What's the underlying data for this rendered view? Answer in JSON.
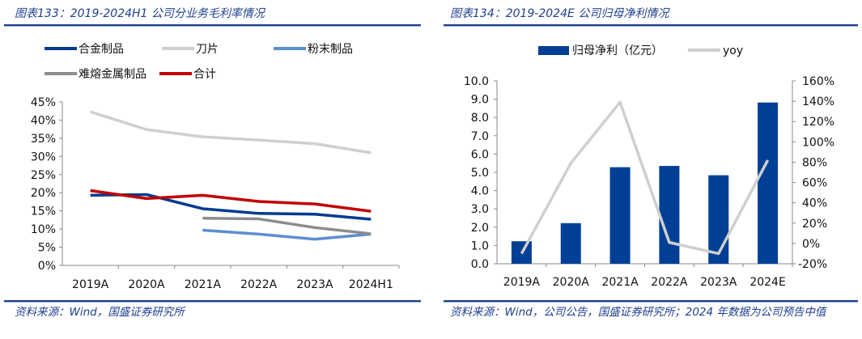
{
  "left": {
    "title": "图表133：2019-2024H1 公司分业务毛利率情况",
    "source": "资料来源：Wind，国盛证券研究所"
  },
  "right": {
    "title": "图表134：2019-2024E 公司归母净利情况",
    "source": "资料来源：Wind，公司公告，国盛证券研究所；2024 年数据为公司预告中值"
  },
  "chart_data": [
    {
      "type": "line",
      "title": "",
      "categories": [
        "2019A",
        "2020A",
        "2021A",
        "2022A",
        "2023A",
        "2024H1"
      ],
      "ylim": [
        0,
        45
      ],
      "yticks": [
        "0%",
        "5%",
        "10%",
        "15%",
        "20%",
        "25%",
        "30%",
        "35%",
        "40%",
        "45%"
      ],
      "yunit": "%",
      "grid": false,
      "legend_placement": "top",
      "series": [
        {
          "name": "合金制品",
          "color": "#003b8f",
          "values": [
            19.3,
            19.5,
            15.6,
            14.3,
            14.1,
            12.7
          ]
        },
        {
          "name": "刀片",
          "color": "#cfcfcf",
          "values": [
            42.3,
            37.4,
            35.4,
            34.5,
            33.5,
            31.0
          ]
        },
        {
          "name": "粉末制品",
          "color": "#5b8fd0",
          "values": [
            null,
            null,
            9.7,
            8.6,
            7.2,
            8.6
          ]
        },
        {
          "name": "难熔金属制品",
          "color": "#8c8c8c",
          "values": [
            null,
            null,
            13.0,
            12.8,
            10.4,
            8.7
          ]
        },
        {
          "name": "合计",
          "color": "#c00000",
          "values": [
            20.6,
            18.4,
            19.3,
            17.6,
            16.9,
            14.9
          ]
        }
      ]
    },
    {
      "type": "bar+line",
      "title": "",
      "categories": [
        "2019A",
        "2020A",
        "2021A",
        "2022A",
        "2023A",
        "2024E"
      ],
      "ylim": [
        0,
        10
      ],
      "yticks": [
        "0.0",
        "1.0",
        "2.0",
        "3.0",
        "4.0",
        "5.0",
        "6.0",
        "7.0",
        "8.0",
        "9.0",
        "10.0"
      ],
      "y2lim": [
        -20,
        160
      ],
      "y2ticks": [
        "-20%",
        "0%",
        "20%",
        "40%",
        "60%",
        "80%",
        "100%",
        "120%",
        "140%",
        "160%"
      ],
      "grid": false,
      "legend_placement": "top",
      "series": [
        {
          "name": "归母净利（亿元）",
          "type": "bar",
          "axis": "left",
          "color": "#003f96",
          "values": [
            1.23,
            2.22,
            5.28,
            5.35,
            4.84,
            8.82
          ]
        },
        {
          "name": "yoy",
          "type": "line",
          "axis": "right",
          "color": "#cfcfcf",
          "values": [
            -10,
            79,
            139,
            1,
            -10,
            82
          ]
        }
      ]
    }
  ]
}
